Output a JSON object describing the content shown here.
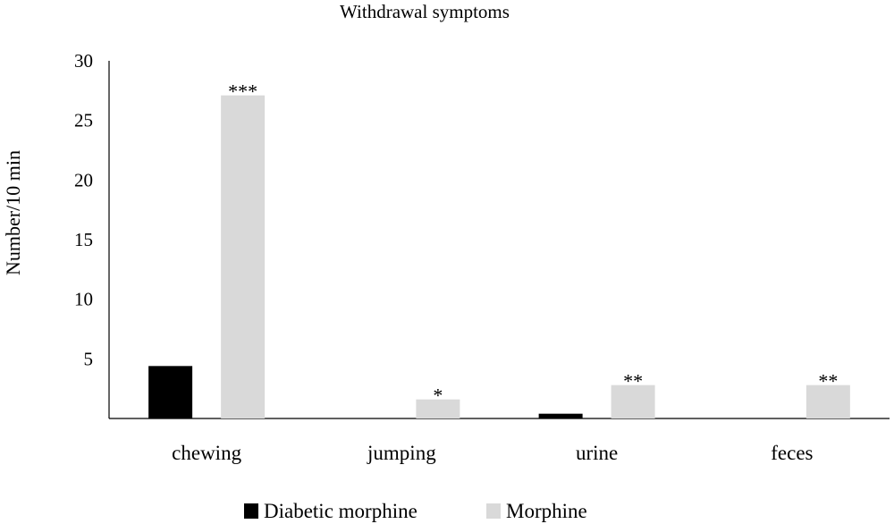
{
  "chart_data": {
    "type": "bar",
    "title": "Withdrawal symptoms",
    "xlabel": "",
    "ylabel": "Number/10 min",
    "categories": [
      "chewing",
      "jumping",
      "urine",
      "feces"
    ],
    "series": [
      {
        "name": "Diabetic morphine",
        "color": "#000000",
        "values": [
          4.4,
          0,
          0.4,
          0
        ]
      },
      {
        "name": "Morphine",
        "color": "#d9d9d9",
        "values": [
          27.1,
          1.6,
          2.8,
          2.8
        ]
      }
    ],
    "annotations": [
      "***",
      "*",
      "**",
      "**"
    ],
    "ylim": [
      0,
      30
    ],
    "yticks": [
      5,
      10,
      15,
      20,
      25,
      30
    ],
    "grid": false,
    "legend_position": "bottom"
  }
}
